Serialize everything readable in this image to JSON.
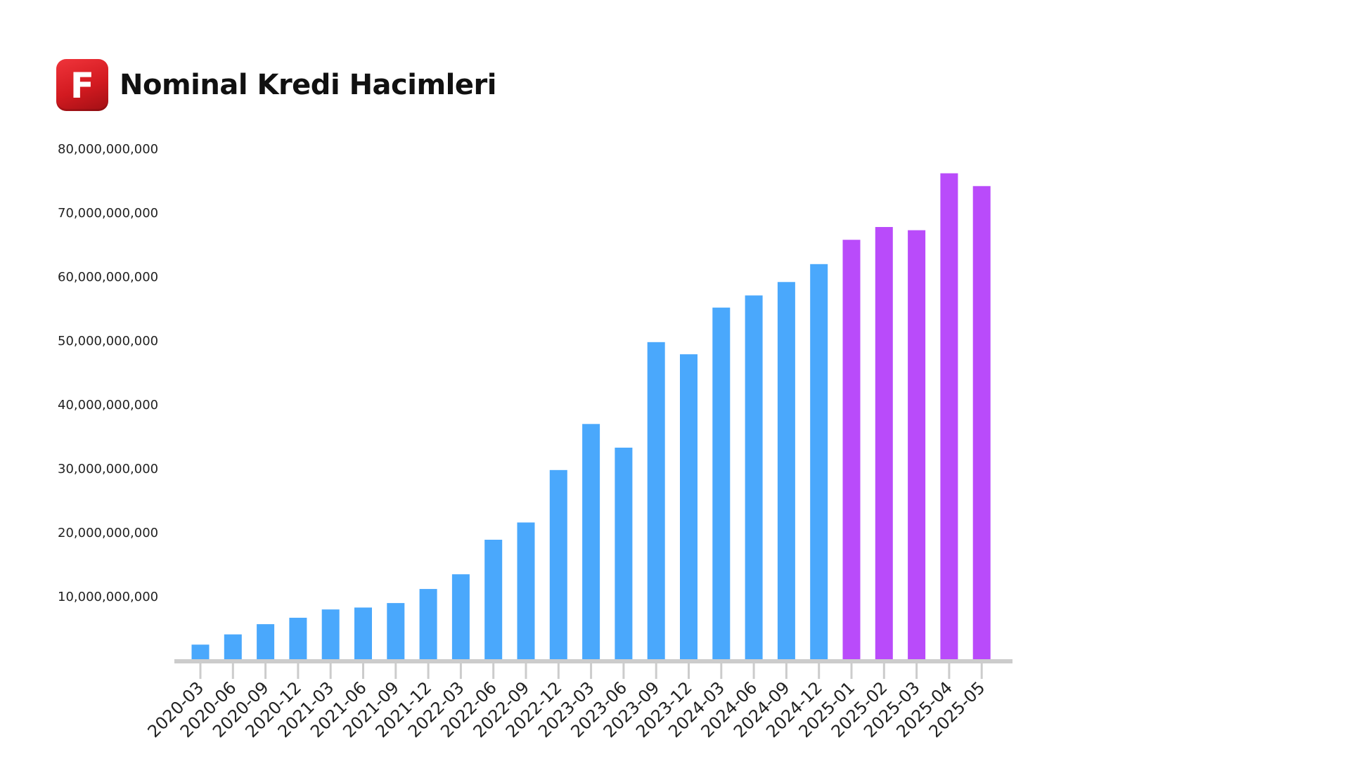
{
  "header": {
    "logo_letter": "F",
    "title": "Nominal Kredi Hacimleri"
  },
  "colors": {
    "historical": "#4aa8fc",
    "recent": "#b94bfa",
    "axis": "#cccccc",
    "logo": "#e0252b"
  },
  "chart_data": {
    "type": "bar",
    "title": "Nominal Kredi Hacimleri",
    "xlabel": "",
    "ylabel": "",
    "ylim": [
      0,
      80000000000
    ],
    "yticks": [
      10000000000,
      20000000000,
      30000000000,
      40000000000,
      50000000000,
      60000000000,
      70000000000,
      80000000000
    ],
    "ytick_labels": [
      "10,000,000,000",
      "20,000,000,000",
      "30,000,000,000",
      "40,000,000,000",
      "50,000,000,000",
      "60,000,000,000",
      "70,000,000,000",
      "80,000,000,000"
    ],
    "grid": false,
    "legend": "none",
    "categories": [
      "2020-03",
      "2020-06",
      "2020-09",
      "2020-12",
      "2021-03",
      "2021-06",
      "2021-09",
      "2021-12",
      "2022-03",
      "2022-06",
      "2022-09",
      "2022-12",
      "2023-03",
      "2023-06",
      "2023-09",
      "2023-12",
      "2024-03",
      "2024-06",
      "2024-09",
      "2024-12",
      "2025-01",
      "2025-02",
      "2025-03",
      "2025-04",
      "2025-05"
    ],
    "values": [
      2500000000,
      4100000000,
      5700000000,
      6700000000,
      8000000000,
      8300000000,
      9000000000,
      11200000000,
      13500000000,
      18900000000,
      21600000000,
      29800000000,
      37000000000,
      33300000000,
      49800000000,
      47900000000,
      55200000000,
      57100000000,
      59200000000,
      62000000000,
      65800000000,
      67800000000,
      67300000000,
      76200000000,
      74200000000
    ],
    "color_groups": [
      "historical",
      "historical",
      "historical",
      "historical",
      "historical",
      "historical",
      "historical",
      "historical",
      "historical",
      "historical",
      "historical",
      "historical",
      "historical",
      "historical",
      "historical",
      "historical",
      "historical",
      "historical",
      "historical",
      "historical",
      "recent",
      "recent",
      "recent",
      "recent",
      "recent"
    ]
  }
}
